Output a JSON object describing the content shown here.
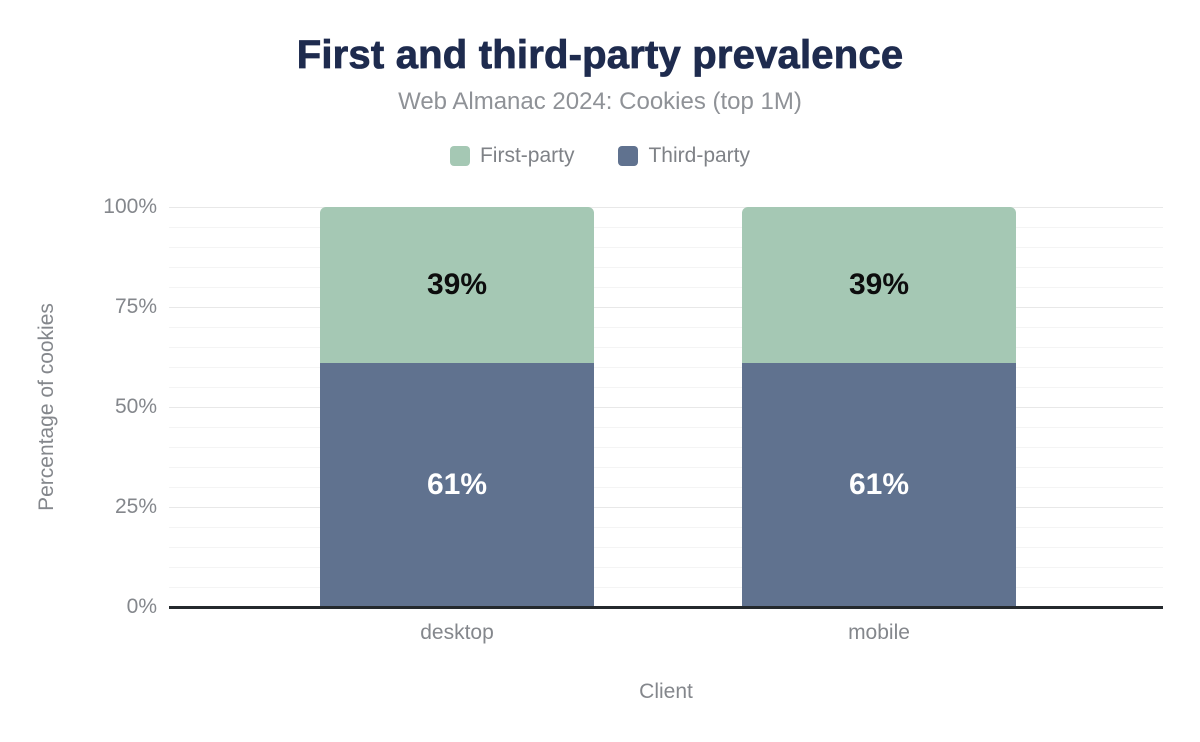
{
  "chart_data": {
    "type": "bar",
    "stacked": true,
    "title": "First and third-party prevalence",
    "subtitle": "Web Almanac 2024: Cookies (top 1M)",
    "xlabel": "Client",
    "ylabel": "Percentage of cookies",
    "categories": [
      "desktop",
      "mobile"
    ],
    "series": [
      {
        "name": "First-party",
        "color": "#a5c8b4",
        "values": [
          39,
          39
        ],
        "value_label_color": "#0d0d0d",
        "stack_position": "top"
      },
      {
        "name": "Third-party",
        "color": "#60728f",
        "values": [
          61,
          61
        ],
        "value_label_color": "#ffffff",
        "stack_position": "bottom"
      }
    ],
    "ylim": [
      0,
      100
    ],
    "yticks": [
      "0%",
      "25%",
      "50%",
      "75%",
      "100%"
    ],
    "ytick_values": [
      0,
      25,
      50,
      75,
      100
    ],
    "minor_gridline_step": 5,
    "grid": true,
    "legend_position": "top",
    "value_label_format": "percent"
  },
  "colors": {
    "title": "#1e2b4e",
    "subtitle": "#8f9297",
    "axis_text": "#84878c",
    "legend_text": "#7f8287",
    "gridline_major": "#e8e8e8",
    "gridline_minor": "#f4f4f4",
    "axis_line": "#24292d",
    "background": "#ffffff"
  }
}
